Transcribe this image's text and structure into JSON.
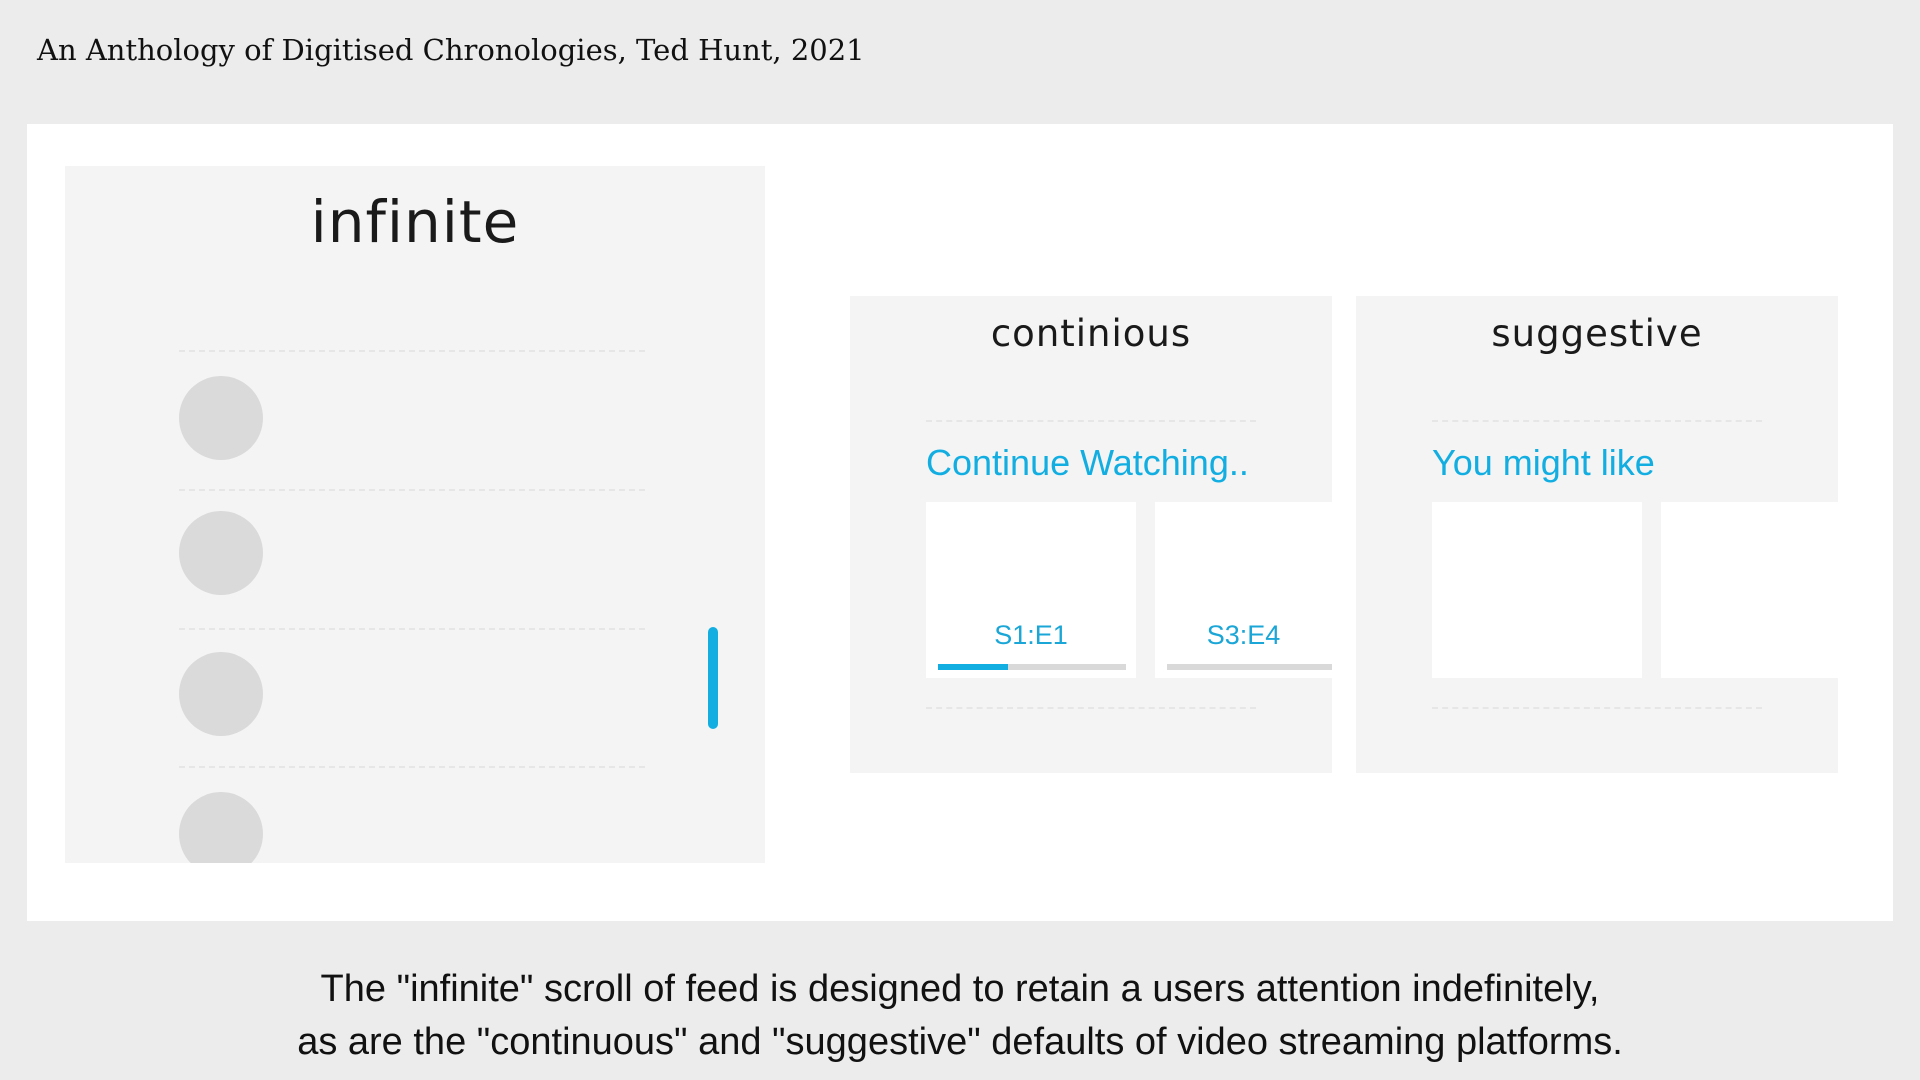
{
  "header": {
    "title": "An Anthology of Digitised Chronologies, Ted Hunt, 2021"
  },
  "panels": {
    "infinite": {
      "title": "infinite",
      "feed_items": 4,
      "accent_color": "#12aee2"
    },
    "continuous": {
      "title": "continious",
      "row_label": "Continue Watching..",
      "cards": [
        {
          "episode": "S1:E1",
          "progress": 0.37
        },
        {
          "episode": "S3:E4",
          "progress": 0.0
        }
      ]
    },
    "suggestive": {
      "title": "suggestive",
      "row_label": "You might like"
    }
  },
  "caption": {
    "line1": "The \"infinite\" scroll of feed is designed to retain a users attention indefinitely,",
    "line2": "as are the \"continuous\" and \"suggestive\" defaults of video streaming platforms."
  },
  "colors": {
    "background": "#ececec",
    "slide": "#ffffff",
    "panel": "#f4f4f4",
    "accent": "#12aee2",
    "placeholder": "#dadada"
  }
}
